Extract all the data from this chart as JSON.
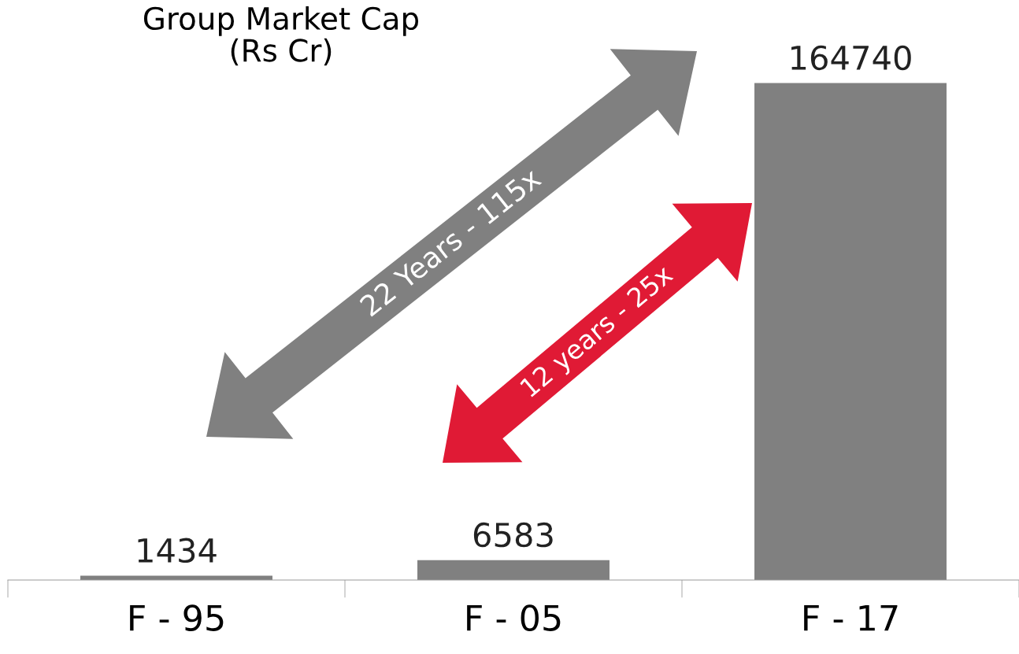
{
  "chart_data": {
    "type": "bar",
    "title": "Group Market Cap\n(Rs Cr)",
    "categories": [
      "F - 95",
      "F - 05",
      "F - 17"
    ],
    "values": [
      1434,
      6583,
      164740
    ],
    "color": "#808080",
    "data_labels": true,
    "grid": false,
    "legend": false,
    "annotations": [
      "22 Years - 115x",
      "12 years - 25x"
    ]
  }
}
